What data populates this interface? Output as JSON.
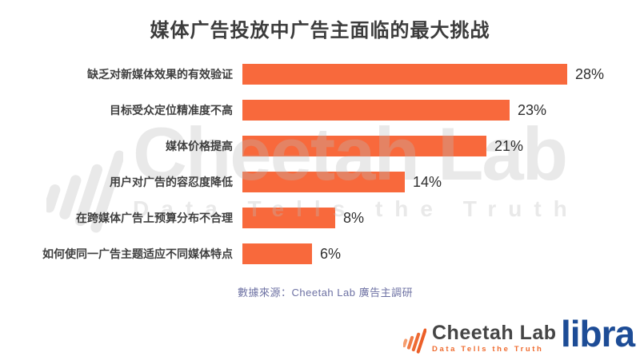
{
  "title": "媒体广告投放中广告主面临的最大挑战",
  "chart_data": {
    "type": "bar",
    "orientation": "horizontal",
    "title": "媒体广告投放中广告主面临的最大挑战",
    "categories": [
      "缺乏对新媒体效果的有效验证",
      "目标受众定位精准度不高",
      "媒体价格提高",
      "用户对广告的容忍度降低",
      "在跨媒体广告上预算分布不合理",
      "如何使同一广告主题适应不同媒体特点"
    ],
    "values": [
      28,
      23,
      21,
      14,
      8,
      6
    ],
    "value_labels": [
      "28%",
      "23%",
      "21%",
      "14%",
      "8%",
      "6%"
    ],
    "unit": "%",
    "xlim": [
      0,
      30
    ],
    "grid": false,
    "legend": false,
    "bar_color": "#f8693c"
  },
  "source_note": "數據來源：Cheetah Lab 廣告主調研",
  "watermark": {
    "brand": "Cheetah Lab",
    "tagline": "Data Tells the Truth"
  },
  "footer": {
    "cheetah_name": "Cheetah Lab",
    "cheetah_tagline": "Data Tells the Truth",
    "libra_name": "libra"
  },
  "colors": {
    "bar": "#f8693c",
    "accent_orange": "#ef6c30",
    "libra_blue": "#1d4c96",
    "source_text": "#6d71a3",
    "title_text": "#3c3c3c"
  }
}
